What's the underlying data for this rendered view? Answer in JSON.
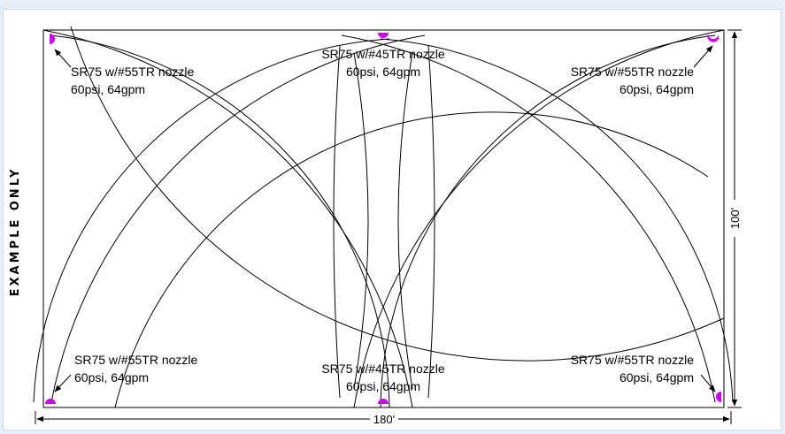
{
  "side_label": "EXAMPLE ONLY",
  "dimensions": {
    "width": "180'",
    "height": "100'"
  },
  "sprinklers": [
    {
      "id": "top-left",
      "line1": "SR75 w/#55TR nozzle",
      "line2": "60psi, 64gpm"
    },
    {
      "id": "top-center",
      "line1": "SR75 w/#45TR nozzle",
      "line2": "60psi, 64gpm"
    },
    {
      "id": "top-right",
      "line1": "SR75 w/#55TR nozzle",
      "line2": "60psi, 64gpm"
    },
    {
      "id": "bottom-left",
      "line1": "SR75 w/#55TR nozzle",
      "line2": "60psi, 64gpm"
    },
    {
      "id": "bottom-center",
      "line1": "SR75 w/#45TR nozzle",
      "line2": "60psi, 64gpm"
    },
    {
      "id": "bottom-right",
      "line1": "SR75 w/#55TR nozzle",
      "line2": "60psi, 64gpm"
    }
  ],
  "colors": {
    "sprinkler_head": "#cc00ee",
    "background": "#e6eef8"
  }
}
